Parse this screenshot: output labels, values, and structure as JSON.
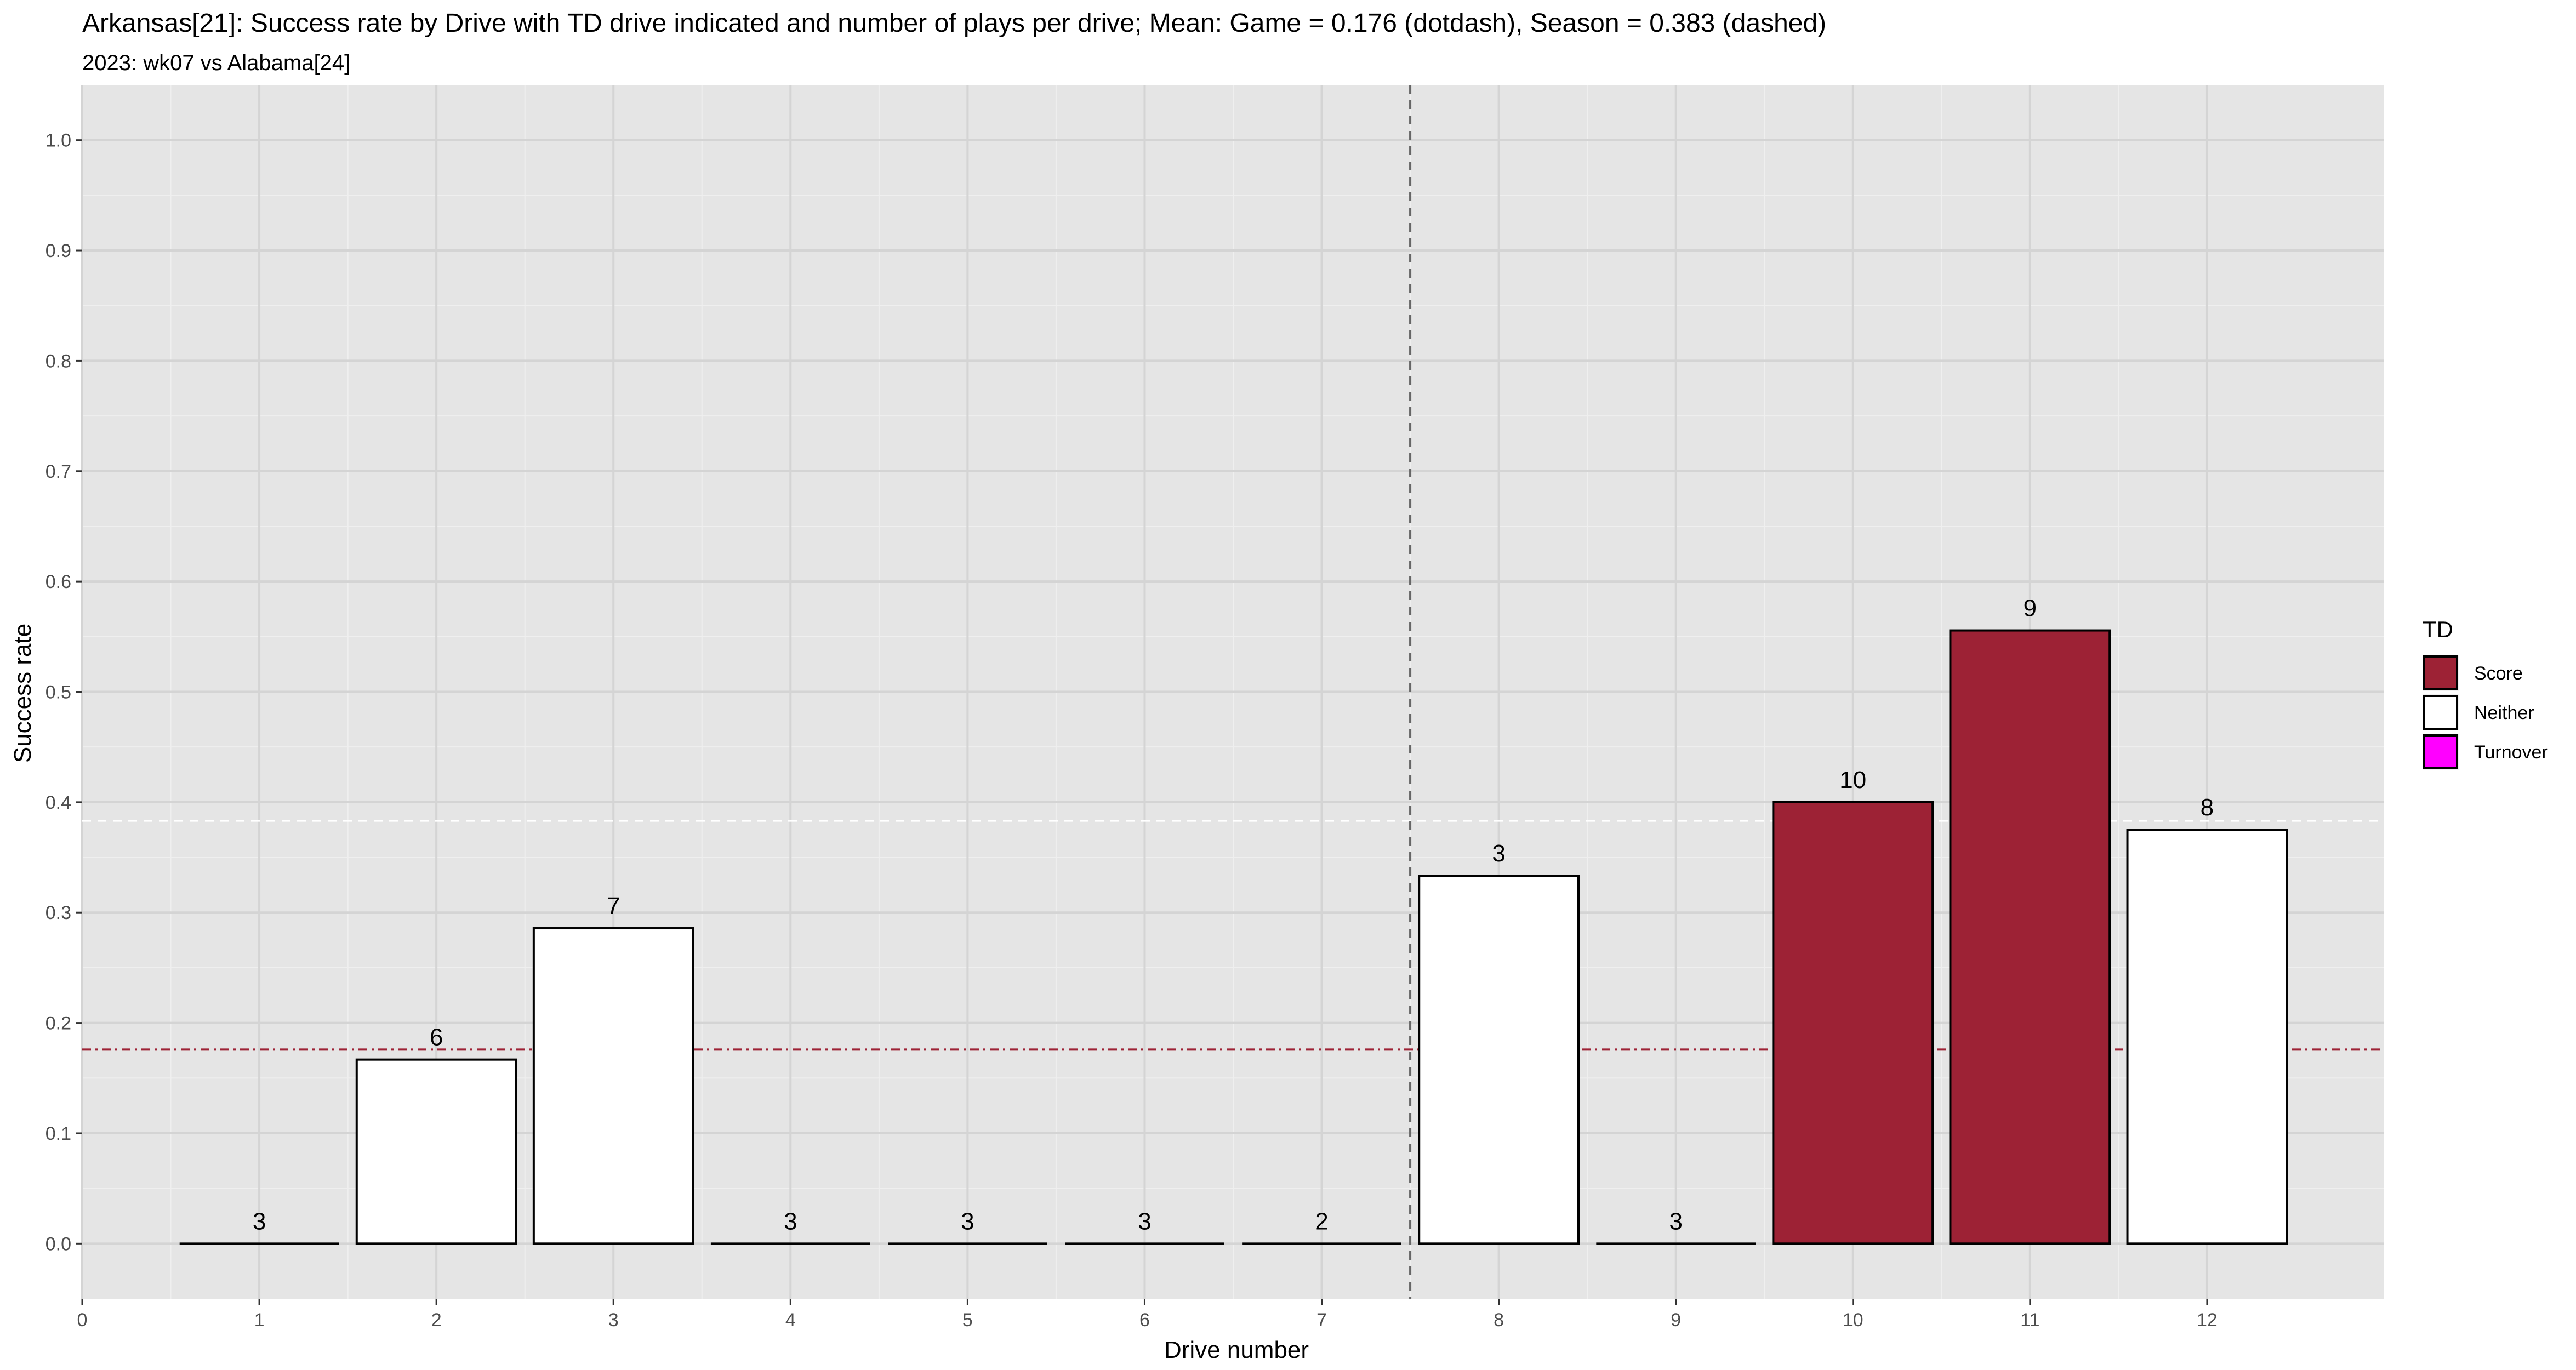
{
  "chart_data": {
    "type": "bar",
    "title": "Arkansas[21]: Success rate by Drive with TD drive indicated and number of plays per drive; Mean: Game = 0.176 (dotdash), Season = 0.383 (dashed)",
    "subtitle": "2023: wk07 vs Alabama[24]",
    "xlabel": "Drive number",
    "ylabel": "Success rate",
    "xlim": [
      0,
      13
    ],
    "ylim": [
      -0.05,
      1.05
    ],
    "x_ticks": [
      0,
      1,
      2,
      3,
      4,
      5,
      6,
      7,
      8,
      9,
      10,
      11,
      12
    ],
    "y_ticks": [
      0.0,
      0.1,
      0.2,
      0.3,
      0.4,
      0.5,
      0.6,
      0.7,
      0.8,
      0.9,
      1.0
    ],
    "y_tick_labels": [
      "0.0",
      "0.1",
      "0.2",
      "0.3",
      "0.4",
      "0.5",
      "0.6",
      "0.7",
      "0.8",
      "0.9",
      "1.0"
    ],
    "grid": true,
    "bars": [
      {
        "drive": 1,
        "success_rate": 0.0,
        "plays": "3",
        "td": "Neither"
      },
      {
        "drive": 2,
        "success_rate": 0.1667,
        "plays": "6",
        "td": "Neither"
      },
      {
        "drive": 3,
        "success_rate": 0.2857,
        "plays": "7",
        "td": "Neither"
      },
      {
        "drive": 4,
        "success_rate": 0.0,
        "plays": "3",
        "td": "Neither"
      },
      {
        "drive": 5,
        "success_rate": 0.0,
        "plays": "3",
        "td": "Neither"
      },
      {
        "drive": 6,
        "success_rate": 0.0,
        "plays": "3",
        "td": "Neither"
      },
      {
        "drive": 7,
        "success_rate": 0.0,
        "plays": "2",
        "td": "Neither"
      },
      {
        "drive": 8,
        "success_rate": 0.3333,
        "plays": "3",
        "td": "Neither"
      },
      {
        "drive": 9,
        "success_rate": 0.0,
        "plays": "3",
        "td": "Neither"
      },
      {
        "drive": 10,
        "success_rate": 0.4,
        "plays": "10",
        "td": "Score"
      },
      {
        "drive": 11,
        "success_rate": 0.5556,
        "plays": "9",
        "td": "Score"
      },
      {
        "drive": 12,
        "success_rate": 0.375,
        "plays": "8",
        "td": "Neither"
      }
    ],
    "reference_lines": {
      "game_mean": {
        "value": 0.176,
        "style": "dotdash",
        "color": "#9d2235",
        "orientation": "horizontal"
      },
      "season_mean": {
        "value": 0.383,
        "style": "dashed",
        "color": "#ffffff",
        "orientation": "horizontal"
      },
      "half_divider": {
        "value": 7.5,
        "style": "dashed",
        "color": "#666666",
        "orientation": "vertical"
      }
    },
    "legend": {
      "title": "TD",
      "placement": "right",
      "entries": [
        {
          "label": "Score",
          "color": "#9d2235"
        },
        {
          "label": "Neither",
          "color": "#ffffff"
        },
        {
          "label": "Turnover",
          "color": "#ff00ff"
        }
      ]
    },
    "colors": {
      "Score": "#9d2235",
      "Neither": "#ffffff",
      "Turnover": "#ff00ff",
      "panel_background": "#e5e5e5",
      "grid": "#ffffff"
    }
  }
}
